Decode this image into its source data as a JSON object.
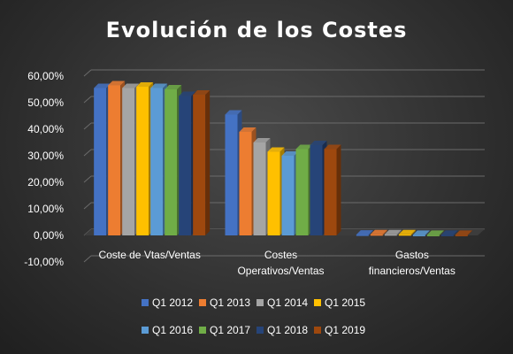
{
  "chart_data": {
    "type": "bar",
    "title": "Evolución de los Costes",
    "categories": [
      [
        "Coste de Vtas/Ventas"
      ],
      [
        "Costes",
        "Operativos/Ventas"
      ],
      [
        "Gastos",
        "financieros/Ventas"
      ]
    ],
    "ylim": [
      -0.1,
      0.6
    ],
    "yticks": [
      "60,00%",
      "50,00%",
      "40,00%",
      "30,00%",
      "20,00%",
      "10,00%",
      "0,00%",
      "-10,00%"
    ],
    "ytick_values": [
      0.6,
      0.5,
      0.4,
      0.3,
      0.2,
      0.1,
      0.0,
      -0.1
    ],
    "legend_position": "bottom",
    "series": [
      {
        "name": "Q1 2012",
        "color": "#4472c4",
        "values": [
          0.555,
          0.455,
          0.003
        ]
      },
      {
        "name": "Q1 2013",
        "color": "#ed7d31",
        "values": [
          0.565,
          0.39,
          0.004
        ]
      },
      {
        "name": "Q1 2014",
        "color": "#a5a5a5",
        "values": [
          0.555,
          0.35,
          0.004
        ]
      },
      {
        "name": "Q1 2015",
        "color": "#ffc000",
        "values": [
          0.56,
          0.315,
          0.004
        ]
      },
      {
        "name": "Q1 2016",
        "color": "#5b9bd5",
        "values": [
          0.555,
          0.3,
          0.002
        ]
      },
      {
        "name": "Q1 2017",
        "color": "#70ad47",
        "values": [
          0.55,
          0.325,
          0.002
        ]
      },
      {
        "name": "Q1 2018",
        "color": "#264478",
        "values": [
          0.525,
          0.34,
          0.002
        ]
      },
      {
        "name": "Q1 2019",
        "color": "#9e480e",
        "values": [
          0.53,
          0.325,
          0.002
        ]
      }
    ]
  }
}
